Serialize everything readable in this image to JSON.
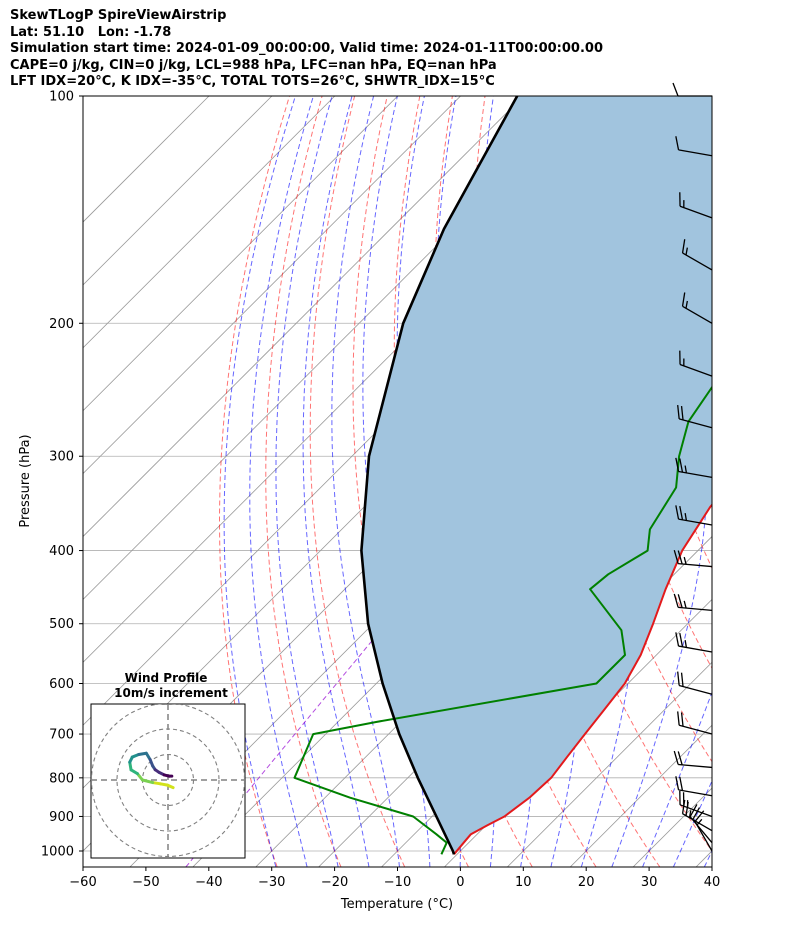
{
  "header": {
    "line1": "SkewTLogP SpireViewAirstrip",
    "line2": "Lat: 51.10   Lon: -1.78",
    "line3": "Simulation start time: 2024-01-09_00:00:00, Valid time: 2024-01-11T00:00:00.00",
    "line4": "CAPE=0 j/kg, CIN=0 j/kg, LCL=988 hPa, LFC=nan hPa, EQ=nan hPa",
    "line5": "LFT IDX=20°C, K IDX=-35°C, TOTAL TOTS=26°C, SHWTR_IDX=15°C"
  },
  "chart_data": {
    "type": "line",
    "xlabel": "Temperature (°C)",
    "ylabel": "Pressure (hPa)",
    "xlim": [
      -60,
      40
    ],
    "ylim": [
      1050,
      100
    ],
    "yscale": "log",
    "x_ticks": [
      -60,
      -50,
      -40,
      -30,
      -20,
      -10,
      0,
      10,
      20,
      30,
      40
    ],
    "x_tick_labels": [
      "−60",
      "−50",
      "−40",
      "−30",
      "−20",
      "−10",
      "0",
      "10",
      "20",
      "30",
      "40"
    ],
    "y_ticks": [
      100,
      200,
      300,
      400,
      500,
      600,
      700,
      800,
      900,
      1000
    ],
    "y_tick_labels": [
      "100",
      "200",
      "300",
      "400",
      "500",
      "600",
      "700",
      "800",
      "900",
      "1000"
    ],
    "grid": true,
    "series": [
      {
        "color": "#e31a1c",
        "points": [
          [
            1010,
            -0.5
          ],
          [
            975,
            -0.8
          ],
          [
            950,
            -1.0
          ],
          [
            925,
            0.2
          ],
          [
            900,
            1.5
          ],
          [
            850,
            2.5
          ],
          [
            800,
            2.8
          ],
          [
            750,
            2.0
          ],
          [
            700,
            1.2
          ],
          [
            650,
            0.4
          ],
          [
            600,
            -0.5
          ],
          [
            550,
            -2.5
          ],
          [
            500,
            -5.5
          ],
          [
            450,
            -9.0
          ],
          [
            400,
            -12.5
          ],
          [
            350,
            -15.0
          ],
          [
            330,
            -15.3
          ],
          [
            300,
            -13.8
          ],
          [
            275,
            -14.8
          ],
          [
            250,
            -15.5
          ],
          [
            225,
            -17.0
          ],
          [
            200,
            -20.0
          ],
          [
            180,
            -22.5
          ],
          [
            165,
            -24.0
          ],
          [
            155,
            -26.5
          ],
          [
            140,
            -30.5
          ],
          [
            125,
            -35.0
          ],
          [
            115,
            -39.0
          ],
          [
            105,
            -41.5
          ],
          [
            100,
            -42.5
          ]
        ]
      },
      {
        "color": "#008000",
        "points": [
          [
            1010,
            -2.5
          ],
          [
            975,
            -3.5
          ],
          [
            950,
            -6.5
          ],
          [
            900,
            -13.0
          ],
          [
            850,
            -26.0
          ],
          [
            800,
            -38.0
          ],
          [
            700,
            -42.0
          ],
          [
            675,
            -34.0
          ],
          [
            600,
            -5.0
          ],
          [
            550,
            -5.0
          ],
          [
            510,
            -9.5
          ],
          [
            450,
            -21.0
          ],
          [
            430,
            -20.5
          ],
          [
            400,
            -18.0
          ],
          [
            375,
            -21.0
          ],
          [
            330,
            -23.5
          ],
          [
            300,
            -28.0
          ],
          [
            270,
            -32.0
          ],
          [
            225,
            -35.0
          ],
          [
            190,
            -37.0
          ],
          [
            170,
            -41.5
          ],
          [
            150,
            -44.0
          ],
          [
            125,
            -48.0
          ],
          [
            100,
            -55.0
          ]
        ]
      },
      {
        "color": "#000000",
        "points": [
          [
            1010,
            -0.5
          ],
          [
            1000,
            -1.2
          ],
          [
            900,
            -9.3
          ],
          [
            800,
            -18.4
          ],
          [
            700,
            -28.3
          ],
          [
            600,
            -39.0
          ],
          [
            500,
            -50.8
          ],
          [
            400,
            -63.5
          ],
          [
            300,
            -77.3
          ],
          [
            200,
            -93.0
          ],
          [
            150,
            -101.5
          ],
          [
            100,
            -111.0
          ]
        ]
      }
    ],
    "parcel_fill_color": "#a1c4de",
    "dry_adiabats_color": "#ff0000",
    "moist_adiabats_color": "#0000ff",
    "mixing_ratio_color": "#9400d3",
    "isotherm_color": "#999999",
    "wind_barbs": [
      {
        "p": 100,
        "speed": 10,
        "dir": 270
      },
      {
        "p": 120,
        "speed": 10,
        "dir": 280
      },
      {
        "p": 145,
        "speed": 15,
        "dir": 290
      },
      {
        "p": 170,
        "speed": 15,
        "dir": 300
      },
      {
        "p": 200,
        "speed": 15,
        "dir": 300
      },
      {
        "p": 235,
        "speed": 15,
        "dir": 290
      },
      {
        "p": 275,
        "speed": 20,
        "dir": 285
      },
      {
        "p": 320,
        "speed": 25,
        "dir": 280
      },
      {
        "p": 370,
        "speed": 25,
        "dir": 280
      },
      {
        "p": 420,
        "speed": 25,
        "dir": 275
      },
      {
        "p": 480,
        "speed": 25,
        "dir": 275
      },
      {
        "p": 545,
        "speed": 25,
        "dir": 280
      },
      {
        "p": 620,
        "speed": 20,
        "dir": 285
      },
      {
        "p": 700,
        "speed": 20,
        "dir": 285
      },
      {
        "p": 775,
        "speed": 20,
        "dir": 275
      },
      {
        "p": 845,
        "speed": 20,
        "dir": 280
      },
      {
        "p": 900,
        "speed": 25,
        "dir": 290
      },
      {
        "p": 940,
        "speed": 25,
        "dir": 300
      },
      {
        "p": 975,
        "speed": 20,
        "dir": 320
      },
      {
        "p": 1000,
        "speed": 15,
        "dir": 330
      }
    ]
  },
  "inset": {
    "title_line1": "Wind Profile",
    "title_line2": "10m/s increment",
    "rings": [
      10,
      20,
      30
    ],
    "path_colors": [
      "#d2e21b",
      "#7ad151",
      "#2fb47c",
      "#21918c",
      "#2c728e",
      "#3b528b",
      "#472d7b",
      "#440154"
    ],
    "hodograph": [
      [
        2.0,
        -3.0
      ],
      [
        -0.2,
        -2.0
      ],
      [
        -3.0,
        -1.5
      ],
      [
        -6.0,
        -1.0
      ],
      [
        -10.0,
        0.0
      ],
      [
        -12.0,
        2.5
      ],
      [
        -14.5,
        4.0
      ],
      [
        -15.0,
        7.0
      ],
      [
        -14.0,
        9.0
      ],
      [
        -11.5,
        10.0
      ],
      [
        -8.5,
        10.5
      ],
      [
        -7.0,
        8.0
      ],
      [
        -6.0,
        5.5
      ],
      [
        -5.0,
        4.0
      ],
      [
        -3.5,
        3.0
      ],
      [
        -1.5,
        2.0
      ],
      [
        0.5,
        1.5
      ],
      [
        1.5,
        1.5
      ]
    ]
  }
}
